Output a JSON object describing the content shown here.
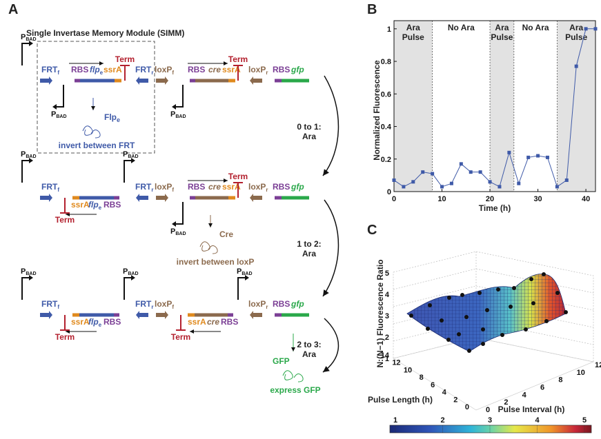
{
  "panel_a": {
    "label": "A",
    "title": "Single Invertase Memory Module (SIMM)",
    "promoter": "P",
    "promoter_sub": "BAD",
    "frt": "FRT",
    "frt_f": "f",
    "frt_r": "r",
    "loxp": "loxP",
    "loxp_f": "f",
    "loxp_r": "r",
    "rbs": "RBS",
    "flp": "flp",
    "flp_sub": "e",
    "ssra": "ssrA",
    "term": "Term",
    "cre": "cre",
    "gfp": "gfp",
    "flpe_protein": "Flp",
    "flpe_protein_sub": "e",
    "invert_frt": "invert between FRT",
    "cre_protein": "Cre",
    "invert_loxp": "invert between loxP",
    "gfp_protein": "GFP",
    "express_gfp": "express GFP",
    "transitions": [
      {
        "label": "0 to 1:",
        "sub": "Ara"
      },
      {
        "label": "1 to 2:",
        "sub": "Ara"
      },
      {
        "label": "2 to 3:",
        "sub": "Ara"
      }
    ]
  },
  "panel_b": {
    "label": "B",
    "ylabel": "Normalized Fluorescence",
    "xlabel": "Time (h)",
    "bands": [
      {
        "label1": "Ara",
        "label2": "Pulse",
        "shaded": true
      },
      {
        "label1": "No Ara",
        "label2": "",
        "shaded": false
      },
      {
        "label1": "Ara",
        "label2": "Pulse",
        "shaded": true
      },
      {
        "label1": "No Ara",
        "label2": "",
        "shaded": false
      },
      {
        "label1": "Ara",
        "label2": "Pulse",
        "shaded": true
      }
    ],
    "xticks": [
      "0",
      "10",
      "20",
      "30",
      "40"
    ],
    "yticks": [
      "0",
      "0.2",
      "0.4",
      "0.6",
      "0.8",
      "1"
    ]
  },
  "panel_c": {
    "label": "C",
    "zlabel": "N:(N−1) Fluorescence Ratio",
    "xlabel": "Pulse Length (h)",
    "ylabel": "Pulse Interval (h)",
    "zticks": [
      "1",
      "2",
      "3",
      "4",
      "5"
    ],
    "length_ticks": [
      "0",
      "2",
      "4",
      "6",
      "8",
      "10",
      "12",
      "14"
    ],
    "interval_ticks": [
      "0",
      "2",
      "4",
      "6",
      "8",
      "10",
      "12"
    ],
    "colorbar_ticks": [
      "1",
      "2",
      "3",
      "4",
      "5"
    ]
  },
  "chart_data": [
    {
      "type": "line",
      "title": "",
      "xlabel": "Time (h)",
      "ylabel": "Normalized Fluorescence",
      "xlim": [
        0,
        42
      ],
      "ylim": [
        0,
        1.05
      ],
      "shaded_intervals": [
        [
          0,
          8
        ],
        [
          20,
          25
        ],
        [
          34,
          42
        ]
      ],
      "series": [
        {
          "x": [
            0,
            2,
            4,
            6,
            8,
            10,
            12,
            14,
            16,
            18,
            20,
            22,
            24,
            26,
            28,
            30,
            32,
            34,
            36,
            38,
            40,
            42
          ],
          "y": [
            0.07,
            0.03,
            0.06,
            0.12,
            0.11,
            0.03,
            0.05,
            0.17,
            0.12,
            0.12,
            0.06,
            0.03,
            0.24,
            0.05,
            0.21,
            0.22,
            0.21,
            0.03,
            0.07,
            0.77,
            1.0,
            1.0
          ]
        }
      ]
    },
    {
      "type": "heatmap",
      "title": "",
      "xlabel": "Pulse Length (h)",
      "ylabel": "Pulse Interval (h)",
      "zlabel": "N:(N−1) Fluorescence Ratio",
      "zlim": [
        1,
        5
      ]
    }
  ]
}
